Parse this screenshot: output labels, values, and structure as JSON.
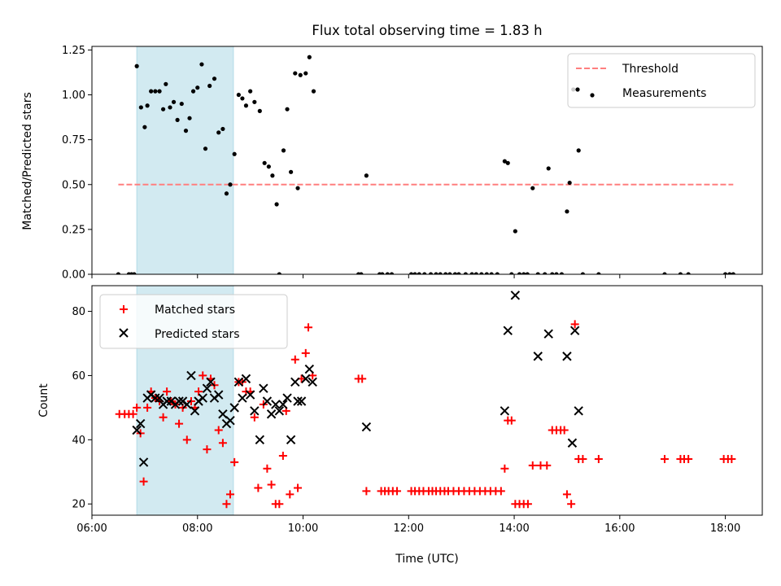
{
  "chart_data": [
    {
      "type": "scatter",
      "title": "Flux total observing time = 1.83 h",
      "xlabel": "",
      "ylabel": "Matched/Predicted stars",
      "ylim": [
        0,
        1.27
      ],
      "xlim": [
        6.0,
        18.7
      ],
      "yticks": [
        "0.00",
        "0.25",
        "0.50",
        "0.75",
        "1.00",
        "1.25"
      ],
      "legend": "top-right",
      "shaded_region": [
        6.85,
        8.68
      ],
      "shaded_color": "#add8e6",
      "threshold": {
        "name": "Threshold",
        "y": 0.5,
        "x_range": [
          6.5,
          18.15
        ],
        "color": "#ff7f7f"
      },
      "series": [
        {
          "name": "Measurements",
          "color": "#000000",
          "points": [
            [
              6.5,
              0
            ],
            [
              6.7,
              0
            ],
            [
              6.75,
              0
            ],
            [
              6.8,
              0
            ],
            [
              6.85,
              1.16
            ],
            [
              6.93,
              0.93
            ],
            [
              7.0,
              0.82
            ],
            [
              7.05,
              0.94
            ],
            [
              7.12,
              1.02
            ],
            [
              7.2,
              1.02
            ],
            [
              7.28,
              1.02
            ],
            [
              7.35,
              0.92
            ],
            [
              7.4,
              1.06
            ],
            [
              7.48,
              0.93
            ],
            [
              7.55,
              0.96
            ],
            [
              7.62,
              0.86
            ],
            [
              7.7,
              0.95
            ],
            [
              7.78,
              0.8
            ],
            [
              7.85,
              0.87
            ],
            [
              7.92,
              1.02
            ],
            [
              8.0,
              1.04
            ],
            [
              8.08,
              1.17
            ],
            [
              8.15,
              0.7
            ],
            [
              8.23,
              1.05
            ],
            [
              8.32,
              1.09
            ],
            [
              8.4,
              0.79
            ],
            [
              8.48,
              0.81
            ],
            [
              8.55,
              0.45
            ],
            [
              8.62,
              0.5
            ],
            [
              8.7,
              0.67
            ],
            [
              8.78,
              1.0
            ],
            [
              8.85,
              0.98
            ],
            [
              8.92,
              0.94
            ],
            [
              9.0,
              1.02
            ],
            [
              9.08,
              0.96
            ],
            [
              9.18,
              0.91
            ],
            [
              9.27,
              0.62
            ],
            [
              9.35,
              0.6
            ],
            [
              9.42,
              0.55
            ],
            [
              9.5,
              0.39
            ],
            [
              9.55,
              0
            ],
            [
              9.63,
              0.69
            ],
            [
              9.7,
              0.92
            ],
            [
              9.77,
              0.57
            ],
            [
              9.85,
              1.12
            ],
            [
              9.9,
              0.48
            ],
            [
              9.95,
              1.11
            ],
            [
              10.05,
              1.12
            ],
            [
              10.12,
              1.21
            ],
            [
              10.2,
              1.02
            ],
            [
              11.05,
              0
            ],
            [
              11.1,
              0
            ],
            [
              11.2,
              0.55
            ],
            [
              11.45,
              0
            ],
            [
              11.5,
              0
            ],
            [
              11.6,
              0
            ],
            [
              11.68,
              0
            ],
            [
              12.05,
              0
            ],
            [
              12.12,
              0
            ],
            [
              12.2,
              0
            ],
            [
              12.3,
              0
            ],
            [
              12.42,
              0
            ],
            [
              12.52,
              0
            ],
            [
              12.6,
              0
            ],
            [
              12.7,
              0
            ],
            [
              12.78,
              0
            ],
            [
              12.88,
              0
            ],
            [
              12.95,
              0
            ],
            [
              13.08,
              0
            ],
            [
              13.2,
              0
            ],
            [
              13.28,
              0
            ],
            [
              13.38,
              0
            ],
            [
              13.48,
              0
            ],
            [
              13.57,
              0
            ],
            [
              13.68,
              0
            ],
            [
              13.82,
              0.63
            ],
            [
              13.88,
              0.62
            ],
            [
              13.95,
              0
            ],
            [
              14.02,
              0.24
            ],
            [
              14.1,
              0
            ],
            [
              14.18,
              0
            ],
            [
              14.25,
              0
            ],
            [
              14.35,
              0.48
            ],
            [
              14.45,
              0
            ],
            [
              14.58,
              0
            ],
            [
              14.65,
              0.59
            ],
            [
              14.72,
              0
            ],
            [
              14.8,
              0
            ],
            [
              14.9,
              0
            ],
            [
              15.0,
              0.35
            ],
            [
              15.05,
              0.51
            ],
            [
              15.12,
              1.03
            ],
            [
              15.22,
              0.69
            ],
            [
              15.3,
              0
            ],
            [
              15.6,
              0
            ],
            [
              16.85,
              0
            ],
            [
              17.15,
              0
            ],
            [
              17.3,
              0
            ],
            [
              18.0,
              0
            ],
            [
              18.08,
              0
            ],
            [
              18.15,
              0
            ]
          ]
        }
      ]
    },
    {
      "type": "scatter",
      "title": "",
      "xlabel": "Time (UTC)",
      "ylabel": "Count",
      "ylim": [
        16.5,
        88
      ],
      "xlim": [
        6.0,
        18.7
      ],
      "yticks": [
        "20",
        "40",
        "60",
        "80"
      ],
      "xticks": [
        "06:00",
        "08:00",
        "10:00",
        "12:00",
        "14:00",
        "16:00",
        "18:00"
      ],
      "legend": "top-left",
      "shaded_region": [
        6.85,
        8.68
      ],
      "shaded_color": "#add8e6",
      "series": [
        {
          "name": "Matched stars",
          "color": "#ff0000",
          "marker": "plus",
          "points": [
            [
              6.52,
              48
            ],
            [
              6.62,
              48
            ],
            [
              6.7,
              48
            ],
            [
              6.78,
              48
            ],
            [
              6.85,
              50
            ],
            [
              6.92,
              42
            ],
            [
              6.98,
              27
            ],
            [
              7.05,
              50
            ],
            [
              7.12,
              55
            ],
            [
              7.2,
              53
            ],
            [
              7.28,
              52
            ],
            [
              7.35,
              47
            ],
            [
              7.42,
              55
            ],
            [
              7.5,
              52
            ],
            [
              7.58,
              51
            ],
            [
              7.65,
              45
            ],
            [
              7.72,
              50
            ],
            [
              7.8,
              40
            ],
            [
              7.88,
              52
            ],
            [
              7.95,
              50
            ],
            [
              8.02,
              55
            ],
            [
              8.1,
              60
            ],
            [
              8.18,
              37
            ],
            [
              8.25,
              59
            ],
            [
              8.32,
              57
            ],
            [
              8.4,
              43
            ],
            [
              8.48,
              39
            ],
            [
              8.55,
              20
            ],
            [
              8.62,
              23
            ],
            [
              8.7,
              33
            ],
            [
              8.78,
              58
            ],
            [
              8.85,
              58
            ],
            [
              8.92,
              55
            ],
            [
              9.0,
              55
            ],
            [
              9.08,
              47
            ],
            [
              9.15,
              25
            ],
            [
              9.25,
              51
            ],
            [
              9.32,
              31
            ],
            [
              9.4,
              26
            ],
            [
              9.48,
              20
            ],
            [
              9.55,
              20
            ],
            [
              9.62,
              35
            ],
            [
              9.68,
              49
            ],
            [
              9.75,
              23
            ],
            [
              9.85,
              65
            ],
            [
              9.9,
              25
            ],
            [
              9.97,
              59
            ],
            [
              10.05,
              67
            ],
            [
              10.1,
              75
            ],
            [
              10.18,
              60
            ],
            [
              11.05,
              59
            ],
            [
              11.12,
              59
            ],
            [
              11.2,
              24
            ],
            [
              11.48,
              24
            ],
            [
              11.55,
              24
            ],
            [
              11.62,
              24
            ],
            [
              11.7,
              24
            ],
            [
              11.78,
              24
            ],
            [
              12.05,
              24
            ],
            [
              12.12,
              24
            ],
            [
              12.2,
              24
            ],
            [
              12.28,
              24
            ],
            [
              12.38,
              24
            ],
            [
              12.45,
              24
            ],
            [
              12.52,
              24
            ],
            [
              12.6,
              24
            ],
            [
              12.68,
              24
            ],
            [
              12.75,
              24
            ],
            [
              12.85,
              24
            ],
            [
              12.95,
              24
            ],
            [
              13.05,
              24
            ],
            [
              13.15,
              24
            ],
            [
              13.25,
              24
            ],
            [
              13.35,
              24
            ],
            [
              13.45,
              24
            ],
            [
              13.55,
              24
            ],
            [
              13.65,
              24
            ],
            [
              13.75,
              24
            ],
            [
              13.82,
              31
            ],
            [
              13.88,
              46
            ],
            [
              13.95,
              46
            ],
            [
              14.02,
              20
            ],
            [
              14.1,
              20
            ],
            [
              14.18,
              20
            ],
            [
              14.26,
              20
            ],
            [
              14.35,
              32
            ],
            [
              14.5,
              32
            ],
            [
              14.62,
              32
            ],
            [
              14.72,
              43
            ],
            [
              14.8,
              43
            ],
            [
              14.88,
              43
            ],
            [
              14.95,
              43
            ],
            [
              15.0,
              23
            ],
            [
              15.08,
              20
            ],
            [
              15.15,
              76
            ],
            [
              15.22,
              34
            ],
            [
              15.3,
              34
            ],
            [
              15.6,
              34
            ],
            [
              16.85,
              34
            ],
            [
              17.15,
              34
            ],
            [
              17.22,
              34
            ],
            [
              17.3,
              34
            ],
            [
              17.97,
              34
            ],
            [
              18.05,
              34
            ],
            [
              18.12,
              34
            ]
          ]
        },
        {
          "name": "Predicted stars",
          "color": "#000000",
          "marker": "x",
          "points": [
            [
              6.85,
              43
            ],
            [
              6.92,
              45
            ],
            [
              6.98,
              33
            ],
            [
              7.05,
              53
            ],
            [
              7.12,
              54
            ],
            [
              7.2,
              53
            ],
            [
              7.28,
              53
            ],
            [
              7.35,
              51
            ],
            [
              7.42,
              52
            ],
            [
              7.5,
              52
            ],
            [
              7.58,
              51
            ],
            [
              7.65,
              52
            ],
            [
              7.72,
              52
            ],
            [
              7.8,
              51
            ],
            [
              7.88,
              60
            ],
            [
              7.95,
              49
            ],
            [
              8.02,
              52
            ],
            [
              8.1,
              53
            ],
            [
              8.18,
              56
            ],
            [
              8.25,
              58
            ],
            [
              8.32,
              53
            ],
            [
              8.4,
              54
            ],
            [
              8.48,
              48
            ],
            [
              8.55,
              45
            ],
            [
              8.62,
              46
            ],
            [
              8.7,
              50
            ],
            [
              8.78,
              58
            ],
            [
              8.85,
              53
            ],
            [
              8.92,
              59
            ],
            [
              9.0,
              54
            ],
            [
              9.08,
              49
            ],
            [
              9.18,
              40
            ],
            [
              9.25,
              56
            ],
            [
              9.32,
              52
            ],
            [
              9.4,
              48
            ],
            [
              9.48,
              51
            ],
            [
              9.55,
              49
            ],
            [
              9.62,
              51
            ],
            [
              9.7,
              53
            ],
            [
              9.77,
              40
            ],
            [
              9.85,
              58
            ],
            [
              9.9,
              52
            ],
            [
              9.97,
              52
            ],
            [
              10.05,
              59
            ],
            [
              10.12,
              62
            ],
            [
              10.18,
              58
            ],
            [
              11.2,
              44
            ],
            [
              13.82,
              49
            ],
            [
              13.88,
              74
            ],
            [
              14.02,
              85
            ],
            [
              14.45,
              66
            ],
            [
              14.65,
              73
            ],
            [
              15.0,
              66
            ],
            [
              15.1,
              39
            ],
            [
              15.15,
              74
            ],
            [
              15.22,
              49
            ]
          ]
        }
      ]
    }
  ]
}
